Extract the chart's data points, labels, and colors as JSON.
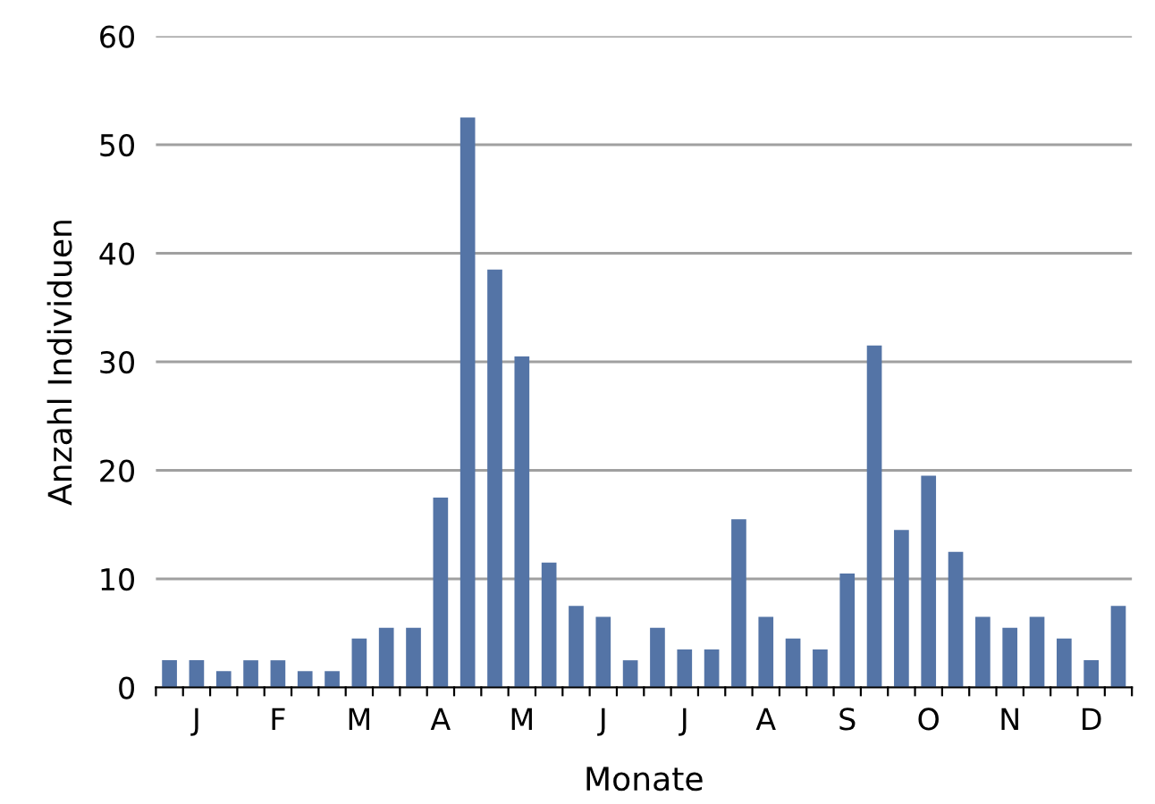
{
  "chart_data": {
    "type": "bar",
    "xlabel": "Monate",
    "ylabel": "Anzahl Individuen",
    "categories": [
      null,
      "J",
      null,
      null,
      "F",
      null,
      null,
      "M",
      null,
      null,
      "A",
      null,
      null,
      "M",
      null,
      null,
      "J",
      null,
      null,
      "J",
      null,
      null,
      "A",
      null,
      null,
      "S",
      null,
      null,
      "O",
      null,
      null,
      "N",
      null,
      null,
      "D",
      null
    ],
    "values": [
      2.5,
      2.5,
      1.5,
      2.5,
      2.5,
      1.5,
      1.5,
      4.5,
      5.5,
      5.5,
      17.5,
      52.5,
      38.5,
      30.5,
      11.5,
      7.5,
      6.5,
      2.5,
      5.5,
      3.5,
      3.5,
      15.5,
      6.5,
      4.5,
      3.5,
      10.5,
      31.5,
      14.5,
      19.5,
      12.5,
      6.5,
      5.5,
      6.5,
      4.5,
      2.5,
      7.5
    ],
    "color": "#5474a6",
    "ylim": [
      0,
      60
    ],
    "yticks": [
      0,
      10,
      20,
      30,
      40,
      50,
      60
    ],
    "grid": "y",
    "legend": false
  }
}
